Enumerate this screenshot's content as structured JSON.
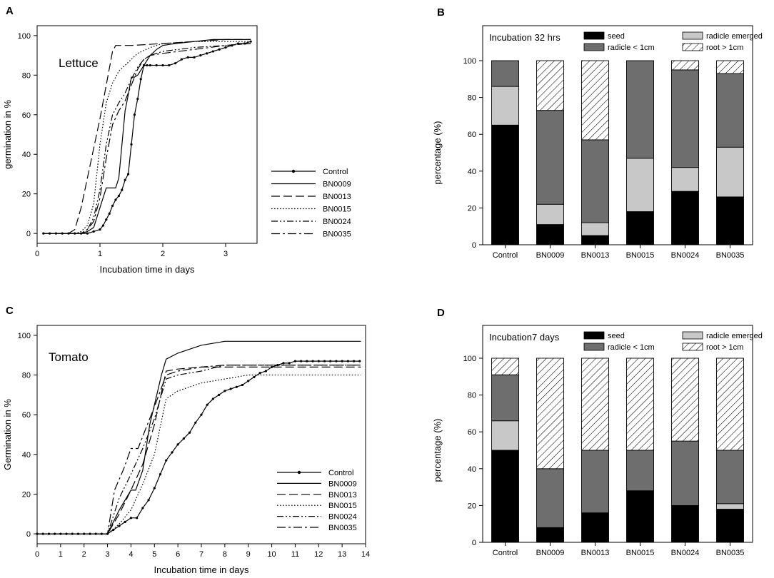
{
  "chart_data": [
    {
      "panel": "A",
      "type": "line",
      "annotation": "Lettuce",
      "xlabel": "Incubation time in days",
      "ylabel": "germination in %",
      "xlim": [
        0,
        3.5
      ],
      "ylim": [
        -5,
        105
      ],
      "xticks": [
        0,
        1,
        2,
        3
      ],
      "yticks": [
        0,
        20,
        40,
        60,
        80,
        100
      ],
      "series": [
        {
          "name": "Control",
          "style": "solid-marker",
          "x": [
            0.1,
            0.2,
            0.3,
            0.4,
            0.5,
            0.6,
            0.7,
            0.8,
            0.9,
            1.0,
            1.05,
            1.1,
            1.15,
            1.2,
            1.25,
            1.3,
            1.35,
            1.4,
            1.45,
            1.5,
            1.55,
            1.6,
            1.65,
            1.7,
            1.75,
            1.8,
            1.9,
            2.0,
            2.1,
            2.2,
            2.3,
            2.4,
            2.5,
            2.6,
            2.7,
            2.8,
            2.9,
            3.0,
            3.1,
            3.2,
            3.3,
            3.4
          ],
          "y": [
            0,
            0,
            0,
            0,
            0,
            0,
            0,
            0,
            1,
            2,
            4,
            7,
            10,
            14,
            17,
            19,
            22,
            27,
            30,
            45,
            60,
            68,
            78,
            85,
            85,
            85,
            85,
            85,
            85,
            86,
            88,
            89,
            89,
            90,
            91,
            92,
            93,
            94,
            95,
            96,
            96,
            97
          ]
        },
        {
          "name": "BN0009",
          "style": "solid",
          "x": [
            0.1,
            0.7,
            0.8,
            0.9,
            0.95,
            1.0,
            1.05,
            1.1,
            1.15,
            1.2,
            1.25,
            1.3,
            1.35,
            1.4,
            1.45,
            1.5,
            1.55,
            1.6,
            1.7,
            1.8,
            1.9,
            2.0,
            2.2,
            2.5,
            2.8,
            3.0,
            3.2,
            3.4
          ],
          "y": [
            0,
            0,
            1,
            3,
            8,
            13,
            18,
            23,
            23,
            23,
            23,
            28,
            45,
            62,
            70,
            79,
            79,
            80,
            85,
            90,
            93,
            95,
            96,
            97,
            98,
            98,
            98,
            98
          ]
        },
        {
          "name": "BN0013",
          "style": "long-dash",
          "x": [
            0.1,
            0.5,
            0.6,
            0.7,
            0.8,
            0.9,
            1.0,
            1.1,
            1.2,
            1.25,
            1.3,
            1.5,
            2.0,
            2.5,
            3.0,
            3.4
          ],
          "y": [
            0,
            0,
            2,
            13,
            28,
            43,
            58,
            75,
            92,
            95,
            95,
            95,
            96,
            97,
            98,
            98
          ]
        },
        {
          "name": "BN0015",
          "style": "dotted",
          "x": [
            0.1,
            0.6,
            0.7,
            0.8,
            0.9,
            1.0,
            1.1,
            1.2,
            1.3,
            1.4,
            1.5,
            1.6,
            1.8,
            2.0,
            2.5,
            3.0,
            3.4
          ],
          "y": [
            0,
            0,
            1,
            4,
            15,
            45,
            66,
            76,
            82,
            85,
            88,
            91,
            94,
            96,
            97,
            97,
            97
          ]
        },
        {
          "name": "BN0024",
          "style": "dash-dot-dot",
          "x": [
            0.1,
            0.7,
            0.8,
            0.9,
            1.0,
            1.1,
            1.2,
            1.3,
            1.4,
            1.5,
            1.6,
            1.7,
            1.8,
            1.9,
            2.0,
            2.5,
            3.0,
            3.4
          ],
          "y": [
            0,
            0,
            2,
            8,
            22,
            45,
            60,
            66,
            71,
            78,
            84,
            88,
            90,
            91,
            92,
            94,
            95,
            96
          ]
        },
        {
          "name": "BN0035",
          "style": "dash-dot",
          "x": [
            0.1,
            0.7,
            0.8,
            0.9,
            1.0,
            1.1,
            1.2,
            1.3,
            1.4,
            1.5,
            1.6,
            1.7,
            1.8,
            2.0,
            2.5,
            3.0,
            3.4
          ],
          "y": [
            0,
            0,
            2,
            6,
            18,
            38,
            55,
            62,
            67,
            75,
            83,
            88,
            90,
            91,
            93,
            95,
            96
          ]
        }
      ]
    },
    {
      "panel": "B",
      "type": "stacked-bar",
      "title": "Incubation 32 hrs",
      "ylabel": "percentage (%)",
      "ylim": [
        0,
        100
      ],
      "yticks": [
        0,
        20,
        40,
        60,
        80,
        100
      ],
      "categories": [
        "Control",
        "BN0009",
        "BN0013",
        "BN0015",
        "BN0024",
        "BN0035"
      ],
      "series": [
        {
          "name": "seed",
          "fill": "#000000",
          "values": [
            65,
            11,
            5,
            18,
            29,
            26
          ]
        },
        {
          "name": "radicle emerged",
          "fill": "#c8c8c8",
          "values": [
            21,
            11,
            7,
            29,
            13,
            27
          ]
        },
        {
          "name": "radicle < 1cm",
          "fill": "#6e6e6e",
          "values": [
            14,
            51,
            45,
            53,
            53,
            40
          ]
        },
        {
          "name": "root > 1cm",
          "fill": "hatch",
          "values": [
            0,
            27,
            43,
            0,
            5,
            7
          ]
        }
      ]
    },
    {
      "panel": "C",
      "type": "line",
      "annotation": "Tomato",
      "xlabel": "Incubation time in days",
      "ylabel": "Germination in %",
      "xlim": [
        0,
        14
      ],
      "ylim": [
        -5,
        105
      ],
      "xticks": [
        0,
        1,
        2,
        3,
        4,
        5,
        6,
        7,
        8,
        9,
        10,
        11,
        12,
        13,
        14
      ],
      "yticks": [
        0,
        20,
        40,
        60,
        80,
        100
      ],
      "series": [
        {
          "name": "Control",
          "style": "solid-marker",
          "x": [
            0,
            0.25,
            0.5,
            0.75,
            1,
            1.25,
            1.5,
            1.75,
            2,
            2.25,
            2.5,
            2.75,
            3,
            3.25,
            3.5,
            3.75,
            4,
            4.25,
            4.5,
            4.75,
            5,
            5.25,
            5.5,
            5.75,
            6,
            6.25,
            6.5,
            6.75,
            7,
            7.25,
            7.5,
            7.75,
            8,
            8.25,
            8.5,
            8.75,
            9,
            9.25,
            9.5,
            9.75,
            10,
            10.25,
            10.5,
            10.75,
            11,
            11.25,
            11.5,
            11.75,
            12,
            12.25,
            12.5,
            12.75,
            13,
            13.25,
            13.5,
            13.75
          ],
          "y": [
            0,
            0,
            0,
            0,
            0,
            0,
            0,
            0,
            0,
            0,
            0,
            0,
            0,
            2,
            4,
            6,
            8,
            8,
            13,
            17,
            23,
            30,
            37,
            41,
            45,
            48,
            51,
            56,
            60,
            65,
            68,
            70,
            72,
            73,
            74,
            75,
            77,
            79,
            81,
            82,
            84,
            85,
            86,
            86,
            87,
            87,
            87,
            87,
            87,
            87,
            87,
            87,
            87,
            87,
            87,
            87
          ]
        },
        {
          "name": "BN0009",
          "style": "solid",
          "x": [
            0,
            3.0,
            3.5,
            4.0,
            4.2,
            4.5,
            4.8,
            5.0,
            5.3,
            5.5,
            6.0,
            7.0,
            8.0,
            9.0,
            13.8
          ],
          "y": [
            0,
            0,
            12,
            22,
            22,
            32,
            55,
            65,
            80,
            88,
            91,
            95,
            97,
            97,
            97
          ]
        },
        {
          "name": "BN0013",
          "style": "long-dash",
          "x": [
            0,
            3.0,
            3.5,
            4.0,
            4.5,
            5.0,
            5.5,
            6.0,
            7.0,
            8.0,
            13.8
          ],
          "y": [
            0,
            0,
            10,
            22,
            35,
            55,
            82,
            83,
            84,
            84,
            84
          ]
        },
        {
          "name": "BN0015",
          "style": "dotted",
          "x": [
            0,
            3.0,
            3.5,
            4.0,
            4.5,
            5.0,
            5.5,
            6.0,
            7.0,
            8.0,
            9.0,
            13.8
          ],
          "y": [
            0,
            0,
            5,
            12,
            25,
            40,
            68,
            72,
            76,
            78,
            80,
            80
          ]
        },
        {
          "name": "BN0024",
          "style": "dash-dot-dot",
          "x": [
            0,
            3.0,
            3.5,
            4.0,
            4.5,
            5.0,
            5.5,
            6.0,
            7.0,
            8.0,
            13.8
          ],
          "y": [
            0,
            0,
            18,
            30,
            43,
            58,
            78,
            80,
            82,
            85,
            85
          ]
        },
        {
          "name": "BN0035",
          "style": "dash-dot",
          "x": [
            0,
            3.0,
            3.3,
            3.7,
            4.0,
            4.3,
            4.6,
            5.0,
            5.5,
            6.0,
            7.0,
            8.0,
            13.8
          ],
          "y": [
            0,
            0,
            22,
            33,
            43,
            43,
            52,
            64,
            80,
            82,
            84,
            85,
            85
          ]
        }
      ]
    },
    {
      "panel": "D",
      "type": "stacked-bar",
      "title": "Incubation7 days",
      "ylabel": "percentage (%)",
      "ylim": [
        0,
        100
      ],
      "yticks": [
        0,
        20,
        40,
        60,
        80,
        100
      ],
      "categories": [
        "Control",
        "BN0009",
        "BN0013",
        "BN0015",
        "BN0024",
        "BN0035"
      ],
      "series": [
        {
          "name": "seed",
          "fill": "#000000",
          "values": [
            50,
            8,
            16,
            28,
            20,
            18
          ]
        },
        {
          "name": "radicle emerged",
          "fill": "#c8c8c8",
          "values": [
            16,
            0,
            0,
            0,
            0,
            3
          ]
        },
        {
          "name": "radicle < 1cm",
          "fill": "#6e6e6e",
          "values": [
            25,
            32,
            34,
            22,
            35,
            29
          ]
        },
        {
          "name": "root > 1cm",
          "fill": "hatch",
          "values": [
            9,
            60,
            50,
            50,
            45,
            50
          ]
        }
      ]
    }
  ]
}
